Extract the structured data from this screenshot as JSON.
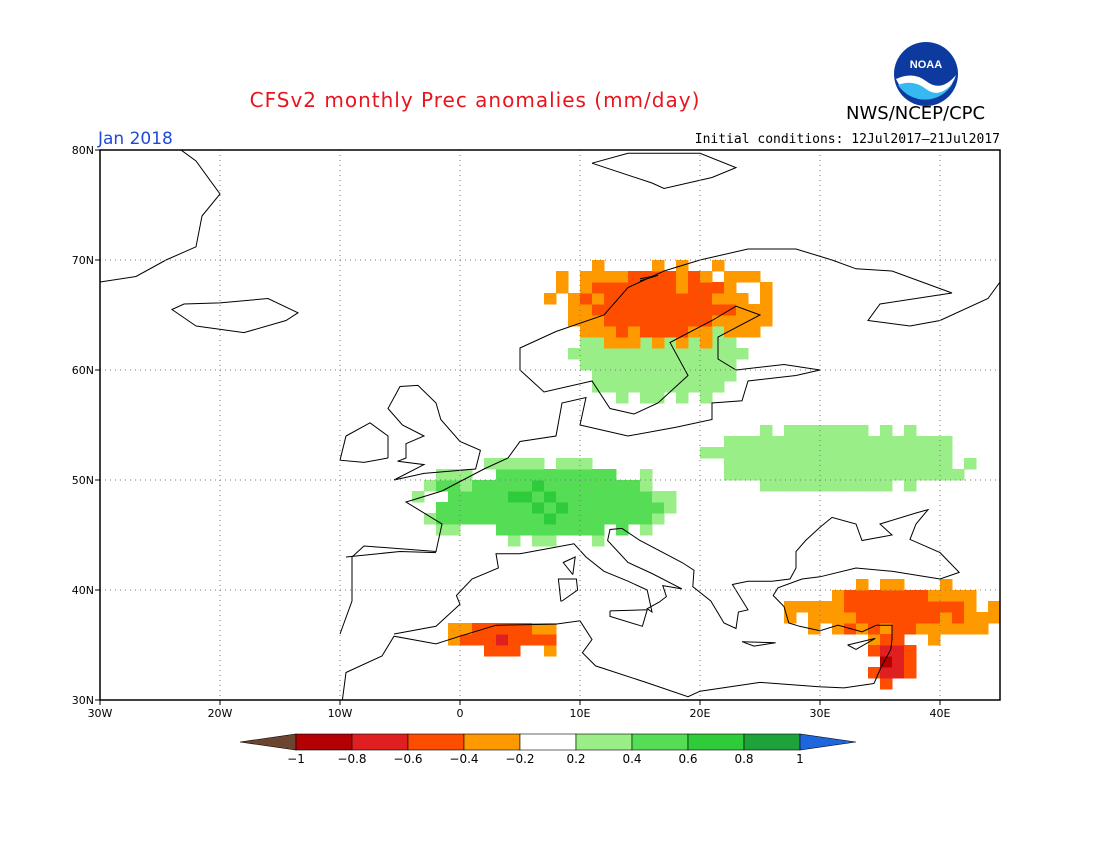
{
  "header": {
    "title": "CFSv2 monthly Prec anomalies (mm/day)",
    "agency": "NWS/NCEP/CPC",
    "logo_text": "NOAA",
    "period": "Jan 2018",
    "initial_conditions": "Initial conditions: 12Jul2017–21Jul2017"
  },
  "map": {
    "lon_range": [
      -30,
      45
    ],
    "lat_range": [
      30,
      80
    ],
    "lat_labels": [
      "80N",
      "70N",
      "60N",
      "50N",
      "40N",
      "30N"
    ],
    "lon_labels": [
      "30W",
      "20W",
      "10W",
      "0",
      "10E",
      "20E",
      "30E",
      "40E"
    ]
  },
  "colorbar": {
    "labels": [
      "−1",
      "−0.8",
      "−0.6",
      "−0.4",
      "−0.2",
      "0.2",
      "0.4",
      "0.6",
      "0.8",
      "1"
    ],
    "colors": [
      "#6b4530",
      "#b30000",
      "#e02020",
      "#ff4d00",
      "#ff9900",
      "#ffffff",
      "#9aee88",
      "#55dd55",
      "#2ecc3a",
      "#1ea33a",
      "#1e66dd"
    ]
  },
  "anomaly_regions": [
    {
      "label": "Central Europe wet",
      "lon": [
        -4,
        18
      ],
      "lat": [
        44,
        52
      ],
      "level": 0.6
    },
    {
      "label": "Eastern Europe wet",
      "lon": [
        18,
        45
      ],
      "lat": [
        48,
        56
      ],
      "level": 0.3
    },
    {
      "label": "Scandinavia wet",
      "lon": [
        7,
        26
      ],
      "lat": [
        56,
        67
      ],
      "level": 0.3
    },
    {
      "label": "Anatolia dry",
      "lon": [
        27,
        45
      ],
      "lat": [
        35,
        41
      ],
      "level": -0.5
    },
    {
      "label": "Levant dry",
      "lon": [
        34,
        38
      ],
      "lat": [
        31,
        36
      ],
      "level": -0.8
    },
    {
      "label": "North Africa dry",
      "lon": [
        -2,
        9
      ],
      "lat": [
        34,
        37
      ],
      "level": -0.6
    },
    {
      "label": "Norway coast dry",
      "lon": [
        6,
        27
      ],
      "lat": [
        62,
        70
      ],
      "level": -0.5
    }
  ]
}
